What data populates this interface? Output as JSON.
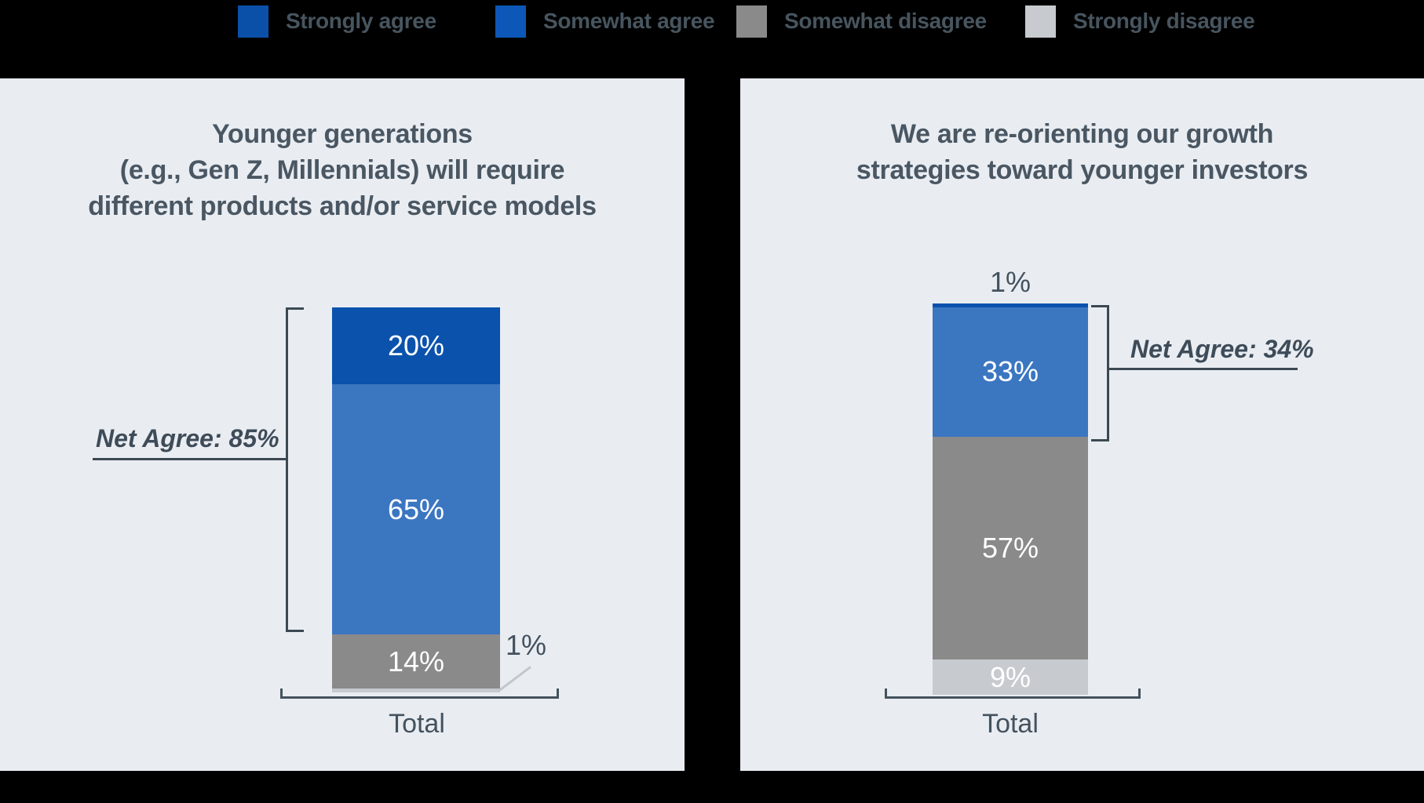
{
  "page": {
    "background": "#000000",
    "panel_background": "#E9EDF2",
    "text_color": "#47555F",
    "accent_dark_blue": "#0B52AC",
    "accent_blue": "#3B76C1",
    "accent_gray": "#8A8A8A",
    "accent_light_gray": "#C7CBCF"
  },
  "legend": {
    "items": [
      {
        "label": "Strongly agree",
        "color": "#0B50A8"
      },
      {
        "label": "Somewhat agree",
        "color": "#0C57B8"
      },
      {
        "label": "Somewhat disagree",
        "color": "#8A8A8A"
      },
      {
        "label": "Strongly disagree",
        "color": "#C7CBCF"
      }
    ]
  },
  "chart_data": [
    {
      "type": "bar",
      "subtype": "stacked-column",
      "title": "Younger generations (e.g., Gen Z, Millennials) will require different products and/or service models",
      "title_lines": [
        "Younger generations",
        "(e.g., Gen Z, Millennials) will require",
        "different products and/or service models"
      ],
      "categories": [
        "Total"
      ],
      "series": [
        {
          "name": "Strongly agree",
          "values": [
            20
          ],
          "color": "#0B52AC",
          "label": "20%"
        },
        {
          "name": "Somewhat agree",
          "values": [
            65
          ],
          "color": "#3B76C1",
          "label": "65%"
        },
        {
          "name": "Somewhat disagree",
          "values": [
            14
          ],
          "color": "#8A8A8A",
          "label": "14%"
        },
        {
          "name": "Strongly disagree",
          "values": [
            1
          ],
          "color": "#C7CBCF",
          "label": "1%"
        }
      ],
      "ylim": [
        0,
        100
      ],
      "grid": false,
      "legend_position": "top-shared",
      "annotations": {
        "net_agree": "Net Agree: 85%",
        "net_agree_value": 85,
        "net_agree_side": "left",
        "outside_callout_label": "1%",
        "xaxis_label": "Total"
      }
    },
    {
      "type": "bar",
      "subtype": "stacked-column",
      "title": "We are re-orienting our growth strategies toward younger investors",
      "title_lines": [
        "We are re-orienting our growth",
        "strategies toward younger investors"
      ],
      "categories": [
        "Total"
      ],
      "series": [
        {
          "name": "Strongly agree",
          "values": [
            1
          ],
          "color": "#0B52AC",
          "label": "1%"
        },
        {
          "name": "Somewhat agree",
          "values": [
            33
          ],
          "color": "#3B76C1",
          "label": "33%"
        },
        {
          "name": "Somewhat disagree",
          "values": [
            57
          ],
          "color": "#8A8A8A",
          "label": "57%"
        },
        {
          "name": "Strongly disagree",
          "values": [
            9
          ],
          "color": "#C7CBCF",
          "label": "9%"
        }
      ],
      "ylim": [
        0,
        100
      ],
      "grid": false,
      "legend_position": "top-shared",
      "annotations": {
        "net_agree": "Net Agree: 34%",
        "net_agree_value": 34,
        "net_agree_side": "right",
        "outside_top_label": "1%",
        "xaxis_label": "Total"
      }
    }
  ]
}
